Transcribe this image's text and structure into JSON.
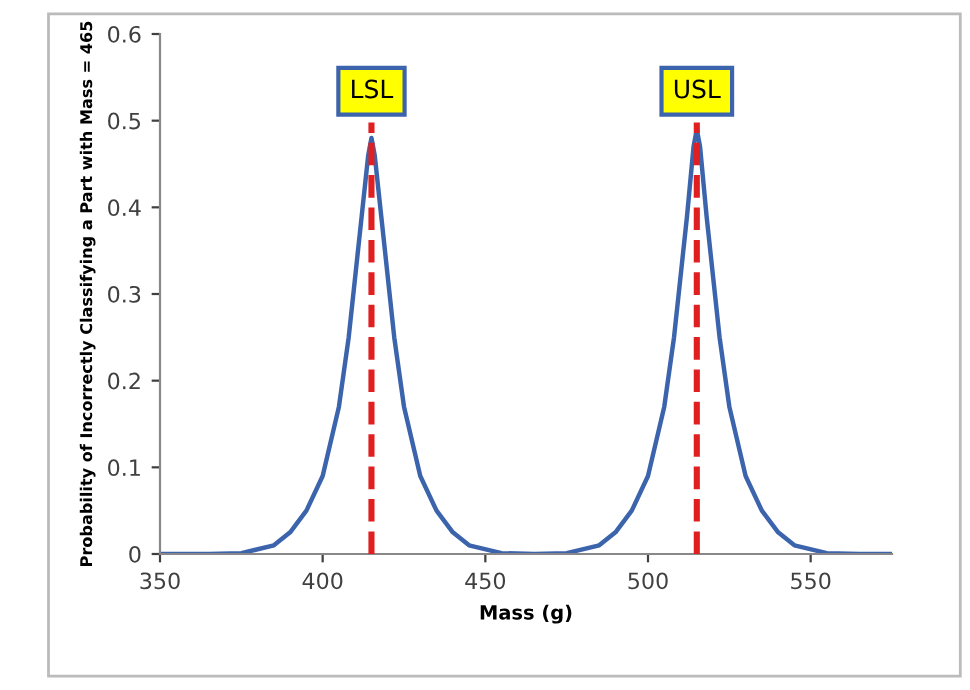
{
  "chart_data": {
    "type": "line",
    "xlabel": "Mass (g)",
    "ylabel": "Probability of Incorrectly Classifying a Part with Mass = 465",
    "x": [
      350,
      365,
      375,
      385,
      390,
      395,
      400,
      405,
      408,
      410,
      412,
      414,
      415,
      416,
      418,
      420,
      422,
      425,
      430,
      435,
      440,
      445,
      455,
      465,
      475,
      485,
      490,
      495,
      500,
      505,
      508,
      510,
      512,
      514,
      515,
      516,
      518,
      520,
      522,
      525,
      530,
      535,
      540,
      545,
      555,
      565,
      575
    ],
    "series": [
      {
        "color": "#3b64ad",
        "values": [
          0,
          0,
          0.001,
          0.01,
          0.025,
          0.05,
          0.09,
          0.17,
          0.25,
          0.32,
          0.39,
          0.46,
          0.48,
          0.46,
          0.39,
          0.32,
          0.25,
          0.17,
          0.09,
          0.05,
          0.025,
          0.01,
          0.001,
          0,
          0.001,
          0.01,
          0.025,
          0.05,
          0.09,
          0.17,
          0.25,
          0.32,
          0.39,
          0.47,
          0.49,
          0.47,
          0.39,
          0.32,
          0.25,
          0.17,
          0.09,
          0.05,
          0.025,
          0.01,
          0.001,
          0,
          0
        ]
      }
    ],
    "xlim": [
      350,
      575
    ],
    "xticks": [
      350,
      400,
      450,
      500,
      550
    ],
    "ylim": [
      0,
      0.6
    ],
    "yticks": [
      0,
      0.1,
      0.2,
      0.3,
      0.4,
      0.5,
      0.6
    ],
    "grid": false,
    "marker": "none",
    "line_style": "solid",
    "ref_lines": [
      {
        "axis": "x",
        "value": 415,
        "label": "LSL",
        "color": "#e02020",
        "line_style": "dashed"
      },
      {
        "axis": "x",
        "value": 515,
        "label": "USL",
        "color": "#e02020",
        "line_style": "dashed"
      }
    ]
  }
}
